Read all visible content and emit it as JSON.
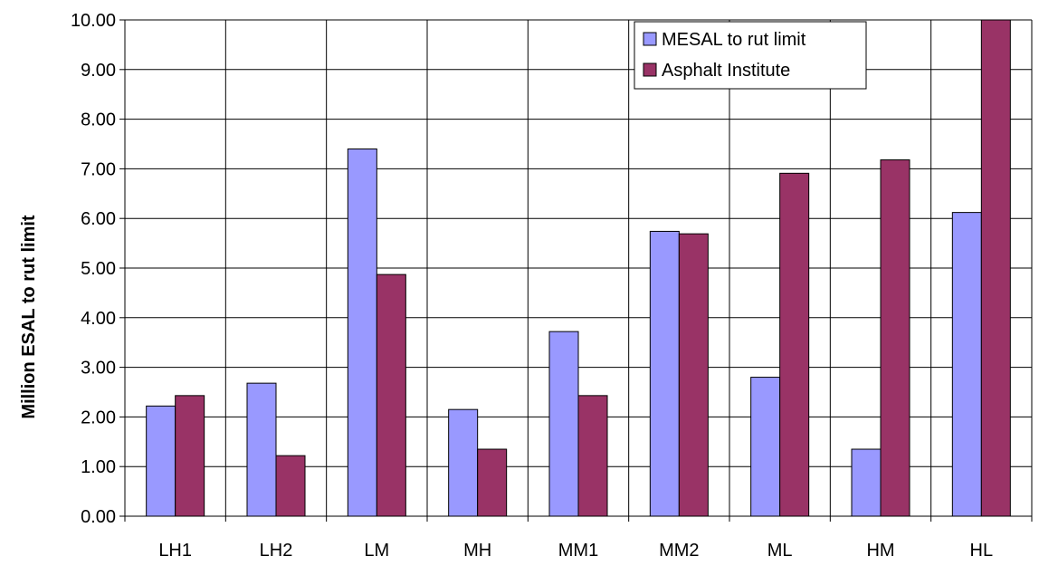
{
  "chart_data": {
    "type": "bar",
    "title": "",
    "xlabel": "",
    "ylabel": "Million ESAL to rut limit",
    "categories": [
      "LH1",
      "LH2",
      "LM",
      "MH",
      "MM1",
      "MM2",
      "ML",
      "HM",
      "HL"
    ],
    "series": [
      {
        "name": "MESAL to rut limit",
        "color": "#9999ff",
        "values": [
          2.22,
          2.68,
          7.4,
          2.15,
          3.72,
          5.74,
          2.8,
          1.35,
          6.12
        ]
      },
      {
        "name": "Asphalt Institute",
        "color": "#993366",
        "values": [
          2.43,
          1.22,
          4.87,
          1.35,
          2.43,
          5.69,
          6.91,
          7.18,
          10.05
        ]
      }
    ],
    "ylim": [
      0,
      10
    ],
    "yticks": [
      "0.00",
      "1.00",
      "2.00",
      "3.00",
      "4.00",
      "5.00",
      "6.00",
      "7.00",
      "8.00",
      "9.00",
      "10.00"
    ],
    "grid": true,
    "legend_position": "top-right"
  }
}
